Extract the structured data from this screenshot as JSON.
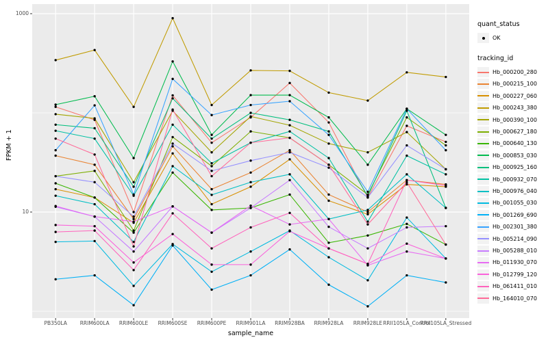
{
  "figure": {
    "panel_bg": "#EBEBEB",
    "grid_color": "#FFFFFF",
    "point_color": "#000000",
    "axis_text_color": "#4D4D4D"
  },
  "y_axis": {
    "title": "FPKM + 1",
    "scale": "log10",
    "tick_labels": [
      "1000",
      "10"
    ],
    "tick_values": [
      1000,
      10
    ],
    "gridline_values": [
      1,
      10,
      100,
      1000
    ]
  },
  "x_axis": {
    "title": "sample_name"
  },
  "legend": {
    "quant_title": "quant_status",
    "quant_item_label": "OK",
    "tracking_title": "tracking_id"
  },
  "chart_data": {
    "type": "line",
    "title": "",
    "xlabel": "sample_name",
    "ylabel": "FPKM + 1",
    "y_scale": "log10",
    "ylim": [
      0.85,
      1250
    ],
    "grid": true,
    "legend_position": "right",
    "quant_status": "OK",
    "categories": [
      "PB350LA",
      "RRIM600LA",
      "RRIM600LE",
      "RRIM600SE",
      "RRIM600PE",
      "RRIM901LA",
      "RRIM928BA",
      "RRIM928LA",
      "RRIM928LE",
      "RRII105LA_Control",
      "RRII105LA_Stressed"
    ],
    "series": [
      {
        "name": "Hb_000200_280",
        "color": "#F8766D",
        "values": [
          115,
          85,
          10,
          150,
          50,
          90,
          200,
          80,
          14,
          74,
          51
        ]
      },
      {
        "name": "Hb_000215_100",
        "color": "#EA8331",
        "values": [
          37,
          30,
          8.5,
          46,
          17,
          25,
          42,
          15,
          10,
          21,
          19
        ]
      },
      {
        "name": "Hb_000227_060",
        "color": "#D89000",
        "values": [
          17,
          14,
          7.8,
          39,
          12,
          18,
          34,
          13,
          9.5,
          19,
          18
        ]
      },
      {
        "name": "Hb_000243_380",
        "color": "#C09B00",
        "values": [
          340,
          430,
          115,
          900,
          120,
          268,
          265,
          160,
          133,
          256,
          230
        ]
      },
      {
        "name": "Hb_000390_100",
        "color": "#A3A500",
        "values": [
          97,
          88,
          20,
          105,
          40,
          92,
          75,
          49,
          40,
          64,
          27
        ]
      },
      {
        "name": "Hb_000627_180",
        "color": "#7CAE00",
        "values": [
          23,
          26,
          6.5,
          57,
          29,
          65,
          56,
          30,
          15,
          90,
          47
        ]
      },
      {
        "name": "Hb_000640_130",
        "color": "#39B600",
        "values": [
          19.5,
          14,
          6.2,
          25,
          10.5,
          11,
          15,
          4.9,
          5.8,
          7.6,
          4.7
        ]
      },
      {
        "name": "Hb_000853_030",
        "color": "#00BB4E",
        "values": [
          121,
          147,
          35,
          330,
          60,
          151,
          151,
          90,
          30,
          110,
          60
        ]
      },
      {
        "name": "Hb_000925_160",
        "color": "#00BF7D",
        "values": [
          76,
          70,
          18,
          140,
          55,
          100,
          85,
          65,
          14.5,
          105,
          11
        ]
      },
      {
        "name": "Hb_000932_070",
        "color": "#00C1A3",
        "values": [
          66,
          55,
          14.6,
          76,
          31,
          50,
          65,
          35,
          8,
          37,
          24
        ]
      },
      {
        "name": "Hb_000976_040",
        "color": "#00BFC4",
        "values": [
          14.6,
          12,
          5,
          29,
          14.9,
          20,
          24,
          8.5,
          10.5,
          24,
          11
        ]
      },
      {
        "name": "Hb_001055_030",
        "color": "#00BAE0",
        "values": [
          5,
          5.1,
          1.8,
          4.75,
          2.5,
          4,
          6.5,
          3.5,
          2.05,
          8.8,
          3.4
        ]
      },
      {
        "name": "Hb_001269_690",
        "color": "#00B0F6",
        "values": [
          2.1,
          2.3,
          1.15,
          4.6,
          1.65,
          2.3,
          4.2,
          1.85,
          1.12,
          2.3,
          1.95
        ]
      },
      {
        "name": "Hb_002301_380",
        "color": "#35A2FF",
        "values": [
          42,
          119,
          15,
          220,
          95,
          120,
          131,
          60,
          16,
          110,
          42
        ]
      },
      {
        "name": "Hb_005214_090",
        "color": "#9590FF",
        "values": [
          23,
          20,
          9,
          49,
          26,
          33,
          40,
          28,
          14,
          47,
          27
        ]
      },
      {
        "name": "Hb_005288_010",
        "color": "#C77CFF",
        "values": [
          11.3,
          9,
          4,
          11.4,
          6.2,
          11,
          21,
          7.1,
          4.3,
          7,
          7.2
        ]
      },
      {
        "name": "Hb_011930_070",
        "color": "#E76BF3",
        "values": [
          11.5,
          9,
          8,
          11.4,
          6.2,
          11.6,
          7.5,
          8.5,
          2.9,
          4,
          3.4
        ]
      },
      {
        "name": "Hb_012799_120",
        "color": "#FA62DB",
        "values": [
          7.4,
          7.2,
          3.1,
          6,
          2.95,
          2.95,
          6.4,
          4.3,
          3,
          4.8,
          3.4
        ]
      },
      {
        "name": "Hb_061411_010",
        "color": "#FF62BC",
        "values": [
          6.3,
          6.5,
          2.6,
          9.7,
          4.3,
          7,
          9.8,
          4.3,
          3,
          21,
          18.5
        ]
      },
      {
        "name": "Hb_164010_070",
        "color": "#FF6A98",
        "values": [
          55,
          38,
          4.5,
          108,
          23,
          50,
          56,
          30,
          7.5,
          20,
          4.7
        ]
      }
    ]
  }
}
